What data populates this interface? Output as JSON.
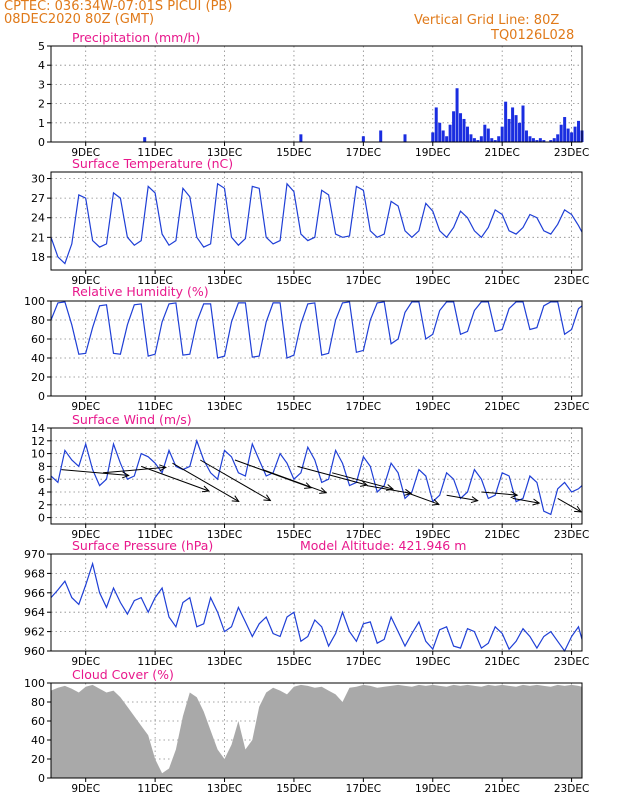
{
  "header": {
    "line1_left": "CPTEC:   036:34W-07:01S   PICUI (PB)",
    "line2_left": "08DEC2020 80Z (GMT)",
    "line1_right": "Vertical Grid Line: 80Z",
    "line2_right": "TQ0126L028",
    "color": "#e07a1a"
  },
  "colors": {
    "title": "#e8188c",
    "line": "#1f3fd6",
    "bar": "#1a2de0",
    "cloud": "#a9a9a9",
    "wind": "#000000",
    "grid": "#888888"
  },
  "x_axis": {
    "range_days": [
      0,
      15.3
    ],
    "tick_labels": [
      "9DEC",
      "11DEC",
      "13DEC",
      "15DEC",
      "17DEC",
      "19DEC",
      "21DEC",
      "23DEC"
    ],
    "tick_positions_days": [
      1,
      3,
      5,
      7,
      9,
      11,
      13,
      15
    ]
  },
  "chart_data": [
    {
      "id": "precip",
      "type": "bar",
      "title": "Precipitation (mm/h)",
      "ylim": [
        0,
        5
      ],
      "yticks": [
        0,
        1,
        2,
        3,
        4,
        5
      ],
      "x_days": [
        2.7,
        7.2,
        9.0,
        9.5,
        10.2,
        11.0,
        11.1,
        11.2,
        11.3,
        11.4,
        11.5,
        11.6,
        11.7,
        11.8,
        11.9,
        12.0,
        12.1,
        12.2,
        12.3,
        12.4,
        12.5,
        12.6,
        12.7,
        12.8,
        12.9,
        13.0,
        13.1,
        13.2,
        13.3,
        13.4,
        13.5,
        13.6,
        13.7,
        13.8,
        13.9,
        14.0,
        14.1,
        14.2,
        14.3,
        14.4,
        14.5,
        14.6,
        14.7,
        14.8,
        14.9,
        15.0,
        15.1,
        15.2,
        15.3
      ],
      "values": [
        0.25,
        0.4,
        0.3,
        0.6,
        0.4,
        0.5,
        1.8,
        1.0,
        0.6,
        0.3,
        0.9,
        1.6,
        2.8,
        1.5,
        1.2,
        0.8,
        0.4,
        0.2,
        0.1,
        0.3,
        0.9,
        0.7,
        0.2,
        0.1,
        0.3,
        0.8,
        2.1,
        1.2,
        1.8,
        1.4,
        1.0,
        1.9,
        0.6,
        0.3,
        0.2,
        0.1,
        0.2,
        0.1,
        0.0,
        0.1,
        0.2,
        0.4,
        0.9,
        1.3,
        0.7,
        0.5,
        0.8,
        1.1,
        0.6
      ]
    },
    {
      "id": "temp",
      "type": "line",
      "title": "Surface Temperature (nC)",
      "ylim": [
        16,
        31
      ],
      "yticks": [
        18,
        21,
        24,
        27,
        30
      ],
      "x_days": [
        0.0,
        0.2,
        0.4,
        0.6,
        0.8,
        1.0,
        1.2,
        1.4,
        1.6,
        1.8,
        2.0,
        2.2,
        2.4,
        2.6,
        2.8,
        3.0,
        3.2,
        3.4,
        3.6,
        3.8,
        4.0,
        4.2,
        4.4,
        4.6,
        4.8,
        5.0,
        5.2,
        5.4,
        5.6,
        5.8,
        6.0,
        6.2,
        6.4,
        6.6,
        6.8,
        7.0,
        7.2,
        7.4,
        7.6,
        7.8,
        8.0,
        8.2,
        8.4,
        8.6,
        8.8,
        9.0,
        9.2,
        9.4,
        9.6,
        9.8,
        10.0,
        10.2,
        10.4,
        10.6,
        10.8,
        11.0,
        11.2,
        11.4,
        11.6,
        11.8,
        12.0,
        12.2,
        12.4,
        12.6,
        12.8,
        13.0,
        13.2,
        13.4,
        13.6,
        13.8,
        14.0,
        14.2,
        14.4,
        14.6,
        14.8,
        15.0,
        15.2,
        15.3
      ],
      "values": [
        21.0,
        18.0,
        17.0,
        20.0,
        27.5,
        27.0,
        20.5,
        19.5,
        20.0,
        27.8,
        27.0,
        21.0,
        19.8,
        20.5,
        28.8,
        27.8,
        21.5,
        19.8,
        20.5,
        28.5,
        27.2,
        21.0,
        19.5,
        20.0,
        29.2,
        28.5,
        21.0,
        19.8,
        20.8,
        28.8,
        28.5,
        21.0,
        20.0,
        20.5,
        29.2,
        28.0,
        21.5,
        20.5,
        21.0,
        28.2,
        27.5,
        21.5,
        21.0,
        21.2,
        28.8,
        28.2,
        22.0,
        21.0,
        21.5,
        26.5,
        25.8,
        22.0,
        21.0,
        22.0,
        26.2,
        25.0,
        22.0,
        21.0,
        22.5,
        25.0,
        24.0,
        22.0,
        21.0,
        22.5,
        25.2,
        24.5,
        22.0,
        21.5,
        22.5,
        24.5,
        24.0,
        22.0,
        21.5,
        23.0,
        25.2,
        24.5,
        22.8,
        21.8
      ]
    },
    {
      "id": "rh",
      "type": "line",
      "title": "Relative Humidity (%)",
      "ylim": [
        0,
        100
      ],
      "yticks": [
        0,
        20,
        40,
        60,
        80,
        100
      ],
      "x_days": [
        0.0,
        0.2,
        0.4,
        0.6,
        0.8,
        1.0,
        1.2,
        1.4,
        1.6,
        1.8,
        2.0,
        2.2,
        2.4,
        2.6,
        2.8,
        3.0,
        3.2,
        3.4,
        3.6,
        3.8,
        4.0,
        4.2,
        4.4,
        4.6,
        4.8,
        5.0,
        5.2,
        5.4,
        5.6,
        5.8,
        6.0,
        6.2,
        6.4,
        6.6,
        6.8,
        7.0,
        7.2,
        7.4,
        7.6,
        7.8,
        8.0,
        8.2,
        8.4,
        8.6,
        8.8,
        9.0,
        9.2,
        9.4,
        9.6,
        9.8,
        10.0,
        10.2,
        10.4,
        10.6,
        10.8,
        11.0,
        11.2,
        11.4,
        11.6,
        11.8,
        12.0,
        12.2,
        12.4,
        12.6,
        12.8,
        13.0,
        13.2,
        13.4,
        13.6,
        13.8,
        14.0,
        14.2,
        14.4,
        14.6,
        14.8,
        15.0,
        15.2,
        15.3
      ],
      "values": [
        80,
        98,
        99,
        75,
        44,
        45,
        72,
        95,
        96,
        45,
        44,
        75,
        96,
        97,
        42,
        44,
        78,
        97,
        98,
        43,
        44,
        78,
        97,
        97,
        40,
        42,
        78,
        98,
        98,
        41,
        42,
        78,
        98,
        98,
        40,
        43,
        76,
        97,
        98,
        43,
        45,
        80,
        98,
        99,
        46,
        48,
        80,
        98,
        99,
        55,
        60,
        88,
        99,
        99,
        60,
        65,
        90,
        99,
        99,
        65,
        68,
        90,
        99,
        99,
        68,
        70,
        92,
        99,
        99,
        70,
        72,
        95,
        99,
        99,
        65,
        70,
        92,
        95
      ]
    },
    {
      "id": "wind",
      "type": "line",
      "title": "Surface Wind (m/s)",
      "ylim": [
        -1,
        14
      ],
      "yticks": [
        0,
        2,
        4,
        6,
        8,
        10,
        12,
        14
      ],
      "x_days": [
        0.0,
        0.2,
        0.4,
        0.6,
        0.8,
        1.0,
        1.2,
        1.4,
        1.6,
        1.8,
        2.0,
        2.2,
        2.4,
        2.6,
        2.8,
        3.0,
        3.2,
        3.4,
        3.6,
        3.8,
        4.0,
        4.2,
        4.4,
        4.6,
        4.8,
        5.0,
        5.2,
        5.4,
        5.6,
        5.8,
        6.0,
        6.2,
        6.4,
        6.6,
        6.8,
        7.0,
        7.2,
        7.4,
        7.6,
        7.8,
        8.0,
        8.2,
        8.4,
        8.6,
        8.8,
        9.0,
        9.2,
        9.4,
        9.6,
        9.8,
        10.0,
        10.2,
        10.4,
        10.6,
        10.8,
        11.0,
        11.2,
        11.4,
        11.6,
        11.8,
        12.0,
        12.2,
        12.4,
        12.6,
        12.8,
        13.0,
        13.2,
        13.4,
        13.6,
        13.8,
        14.0,
        14.2,
        14.4,
        14.6,
        14.8,
        15.0,
        15.2,
        15.3
      ],
      "values": [
        6.5,
        5.5,
        10.5,
        9.0,
        8.0,
        11.5,
        7.5,
        5.0,
        6.0,
        11.5,
        8.5,
        6.0,
        6.5,
        10.0,
        9.5,
        8.5,
        7.0,
        10.5,
        8.0,
        7.5,
        8.0,
        12.0,
        9.0,
        7.0,
        6.0,
        10.5,
        9.5,
        7.0,
        6.5,
        11.5,
        9.0,
        6.5,
        7.0,
        10.0,
        8.5,
        6.0,
        7.0,
        11.0,
        9.0,
        5.5,
        6.0,
        10.5,
        8.5,
        5.0,
        5.5,
        9.5,
        8.0,
        4.0,
        5.0,
        8.5,
        7.0,
        3.0,
        4.0,
        7.5,
        6.5,
        2.5,
        3.5,
        7.0,
        6.0,
        3.0,
        4.0,
        7.5,
        6.0,
        3.0,
        3.5,
        7.0,
        6.5,
        2.5,
        3.0,
        6.5,
        5.5,
        1.0,
        0.5,
        4.5,
        5.5,
        4.0,
        4.5,
        5.0
      ],
      "arrows": [
        {
          "x_days": 0.3,
          "speed": 7.5,
          "dir_deg": 275
        },
        {
          "x_days": 1.5,
          "speed": 7.0,
          "dir_deg": 265
        },
        {
          "x_days": 2.6,
          "speed": 8.0,
          "dir_deg": 290
        },
        {
          "x_days": 3.5,
          "speed": 8.5,
          "dir_deg": 300
        },
        {
          "x_days": 4.3,
          "speed": 9.0,
          "dir_deg": 300
        },
        {
          "x_days": 5.3,
          "speed": 9.0,
          "dir_deg": 290
        },
        {
          "x_days": 6.1,
          "speed": 7.5,
          "dir_deg": 290
        },
        {
          "x_days": 7.1,
          "speed": 8.0,
          "dir_deg": 285
        },
        {
          "x_days": 8.1,
          "speed": 7.0,
          "dir_deg": 285
        },
        {
          "x_days": 9.1,
          "speed": 5.0,
          "dir_deg": 280
        },
        {
          "x_days": 10.2,
          "speed": 4.0,
          "dir_deg": 290
        },
        {
          "x_days": 11.4,
          "speed": 3.5,
          "dir_deg": 280
        },
        {
          "x_days": 12.4,
          "speed": 4.0,
          "dir_deg": 275
        },
        {
          "x_days": 13.3,
          "speed": 3.0,
          "dir_deg": 280
        },
        {
          "x_days": 14.6,
          "speed": 3.0,
          "dir_deg": 300
        }
      ]
    },
    {
      "id": "pressure",
      "type": "line",
      "title": "Surface Pressure (hPa)",
      "subtitle": "Model Altitude: 421.946 m",
      "ylim": [
        960,
        970
      ],
      "yticks": [
        960,
        962,
        964,
        966,
        968,
        970
      ],
      "x_days": [
        0.0,
        0.2,
        0.4,
        0.6,
        0.8,
        1.0,
        1.2,
        1.4,
        1.6,
        1.8,
        2.0,
        2.2,
        2.4,
        2.6,
        2.8,
        3.0,
        3.2,
        3.4,
        3.6,
        3.8,
        4.0,
        4.2,
        4.4,
        4.6,
        4.8,
        5.0,
        5.2,
        5.4,
        5.6,
        5.8,
        6.0,
        6.2,
        6.4,
        6.6,
        6.8,
        7.0,
        7.2,
        7.4,
        7.6,
        7.8,
        8.0,
        8.2,
        8.4,
        8.6,
        8.8,
        9.0,
        9.2,
        9.4,
        9.6,
        9.8,
        10.0,
        10.2,
        10.4,
        10.6,
        10.8,
        11.0,
        11.2,
        11.4,
        11.6,
        11.8,
        12.0,
        12.2,
        12.4,
        12.6,
        12.8,
        13.0,
        13.2,
        13.4,
        13.6,
        13.8,
        14.0,
        14.2,
        14.4,
        14.6,
        14.8,
        15.0,
        15.2,
        15.3
      ],
      "values": [
        965.5,
        966.3,
        967.2,
        965.5,
        964.8,
        966.8,
        969.0,
        966.0,
        964.5,
        966.5,
        965.0,
        963.8,
        965.2,
        965.5,
        964.0,
        965.5,
        966.5,
        963.5,
        962.5,
        965.0,
        965.5,
        962.5,
        962.8,
        965.5,
        964.0,
        962.0,
        962.5,
        964.5,
        963.0,
        961.5,
        962.8,
        963.5,
        961.8,
        961.5,
        963.5,
        964.0,
        961.0,
        961.5,
        963.2,
        962.5,
        960.5,
        961.8,
        964.0,
        962.0,
        961.0,
        962.8,
        963.0,
        960.8,
        961.2,
        963.5,
        962.0,
        960.5,
        961.8,
        963.0,
        961.0,
        960.2,
        962.2,
        962.5,
        960.5,
        960.3,
        962.3,
        962.0,
        960.3,
        960.8,
        962.5,
        961.8,
        960.2,
        961.0,
        962.3,
        961.5,
        960.3,
        961.5,
        962.0,
        961.0,
        960.0,
        961.5,
        962.5,
        961.2
      ]
    },
    {
      "id": "cloud",
      "type": "area",
      "title": "Cloud Cover (%)",
      "ylim": [
        0,
        100
      ],
      "yticks": [
        0,
        20,
        40,
        60,
        80,
        100
      ],
      "x_days": [
        0.0,
        0.2,
        0.4,
        0.6,
        0.8,
        1.0,
        1.2,
        1.4,
        1.6,
        1.8,
        2.0,
        2.2,
        2.4,
        2.6,
        2.8,
        3.0,
        3.2,
        3.4,
        3.6,
        3.8,
        4.0,
        4.2,
        4.4,
        4.6,
        4.8,
        5.0,
        5.2,
        5.4,
        5.6,
        5.8,
        6.0,
        6.2,
        6.4,
        6.6,
        6.8,
        7.0,
        7.2,
        7.4,
        7.6,
        7.8,
        8.0,
        8.2,
        8.4,
        8.6,
        8.8,
        9.0,
        9.2,
        9.4,
        9.6,
        9.8,
        10.0,
        10.2,
        10.4,
        10.6,
        10.8,
        11.0,
        11.2,
        11.4,
        11.6,
        11.8,
        12.0,
        12.2,
        12.4,
        12.6,
        12.8,
        13.0,
        13.2,
        13.4,
        13.6,
        13.8,
        14.0,
        14.2,
        14.4,
        14.6,
        14.8,
        15.0,
        15.2,
        15.3
      ],
      "values": [
        92,
        95,
        97,
        94,
        90,
        96,
        98,
        94,
        90,
        92,
        85,
        75,
        65,
        55,
        45,
        20,
        5,
        10,
        30,
        65,
        90,
        85,
        70,
        50,
        30,
        20,
        35,
        60,
        30,
        40,
        75,
        90,
        95,
        92,
        88,
        96,
        98,
        97,
        95,
        96,
        92,
        88,
        80,
        95,
        96,
        98,
        97,
        95,
        96,
        97,
        98,
        97,
        96,
        98,
        97,
        98,
        97,
        96,
        98,
        97,
        98,
        97,
        96,
        98,
        97,
        98,
        97,
        96,
        98,
        97,
        98,
        97,
        96,
        98,
        97,
        98,
        97,
        96
      ]
    }
  ]
}
